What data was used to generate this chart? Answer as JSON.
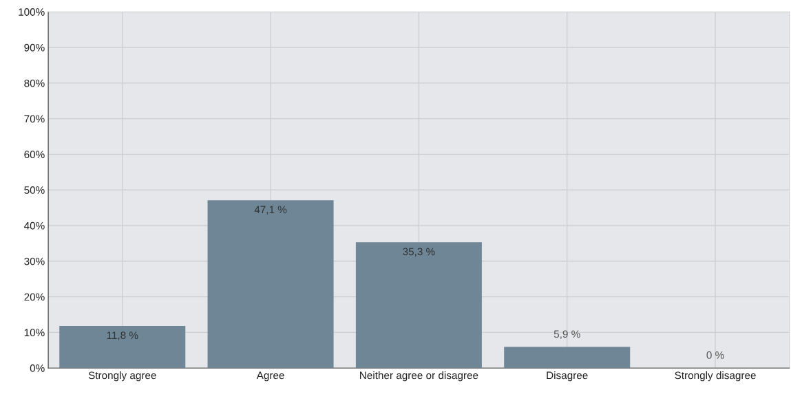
{
  "chart_data": {
    "type": "bar",
    "categories": [
      "Strongly agree",
      "Agree",
      "Neither agree or disagree",
      "Disagree",
      "Strongly disagree"
    ],
    "values": [
      11.8,
      47.1,
      35.3,
      5.9,
      0
    ],
    "value_labels": [
      "11,8 %",
      "47,1 %",
      "35,3 %",
      "5,9 %",
      "0 %"
    ],
    "color": "#6e8695",
    "ylim": [
      0,
      100
    ],
    "yticks": [
      {
        "value": 0,
        "label": "0%"
      },
      {
        "value": 10,
        "label": "10%"
      },
      {
        "value": 20,
        "label": "20%"
      },
      {
        "value": 30,
        "label": "30%"
      },
      {
        "value": 40,
        "label": "40%"
      },
      {
        "value": 50,
        "label": "50%"
      },
      {
        "value": 60,
        "label": "60%"
      },
      {
        "value": 70,
        "label": "70%"
      },
      {
        "value": 80,
        "label": "80%"
      },
      {
        "value": 90,
        "label": "90%"
      },
      {
        "value": 100,
        "label": "100%"
      }
    ],
    "grid": true
  }
}
